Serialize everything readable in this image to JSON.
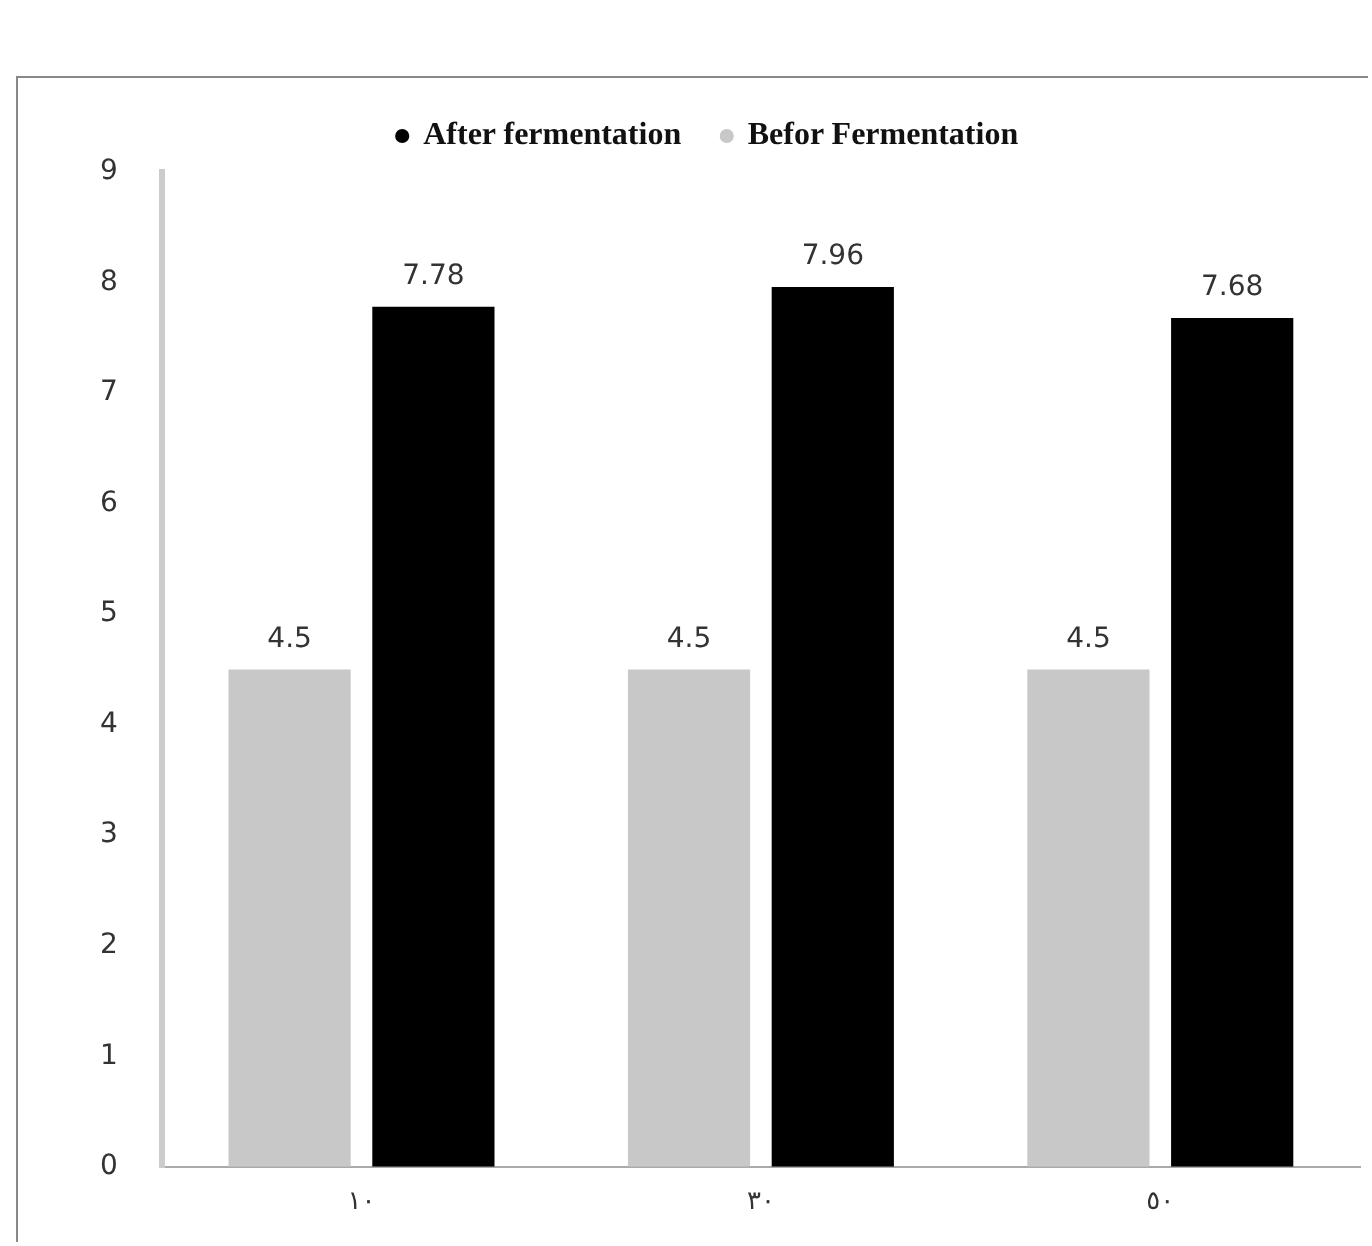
{
  "chart_data": {
    "type": "bar",
    "categories": [
      "١٠",
      "٣٠",
      "٥٠"
    ],
    "series": [
      {
        "name": "Befor Fermentation",
        "color": "#c8c8c8",
        "values": [
          4.5,
          4.5,
          4.5
        ]
      },
      {
        "name": "After fermentation",
        "color": "#000000",
        "values": [
          7.78,
          7.96,
          7.68
        ]
      }
    ],
    "ylim": [
      0,
      9
    ],
    "yticks": [
      0,
      1,
      2,
      3,
      4,
      5,
      6,
      7,
      8,
      9
    ],
    "grid": false,
    "legend": "top",
    "data_labels": true
  }
}
